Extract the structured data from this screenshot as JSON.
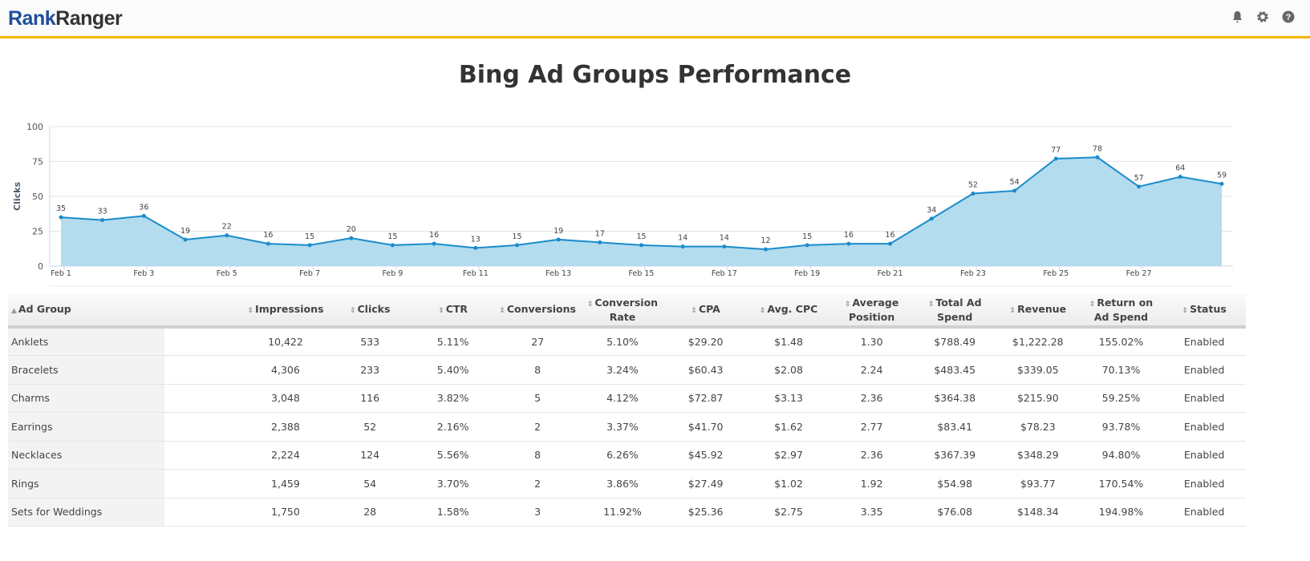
{
  "header": {
    "logo_part1": "Rank",
    "logo_part2": "Ranger",
    "icons": [
      "bell-icon",
      "gear-icon",
      "help-icon"
    ]
  },
  "title": "Bing Ad Groups Performance",
  "chart_data": {
    "type": "area",
    "title": "Bing Ad Groups Performance",
    "ylabel": "Clicks",
    "xlabel": "",
    "ylim": [
      0,
      100
    ],
    "yticks": [
      "0",
      "25",
      "50",
      "75",
      "100"
    ],
    "x": [
      "Feb 1",
      "Feb 2",
      "Feb 3",
      "Feb 4",
      "Feb 5",
      "Feb 6",
      "Feb 7",
      "Feb 8",
      "Feb 9",
      "Feb 10",
      "Feb 11",
      "Feb 12",
      "Feb 13",
      "Feb 14",
      "Feb 15",
      "Feb 16",
      "Feb 17",
      "Feb 18",
      "Feb 19",
      "Feb 20",
      "Feb 21",
      "Feb 22",
      "Feb 23",
      "Feb 24",
      "Feb 25",
      "Feb 26",
      "Feb 27",
      "Feb 28",
      "Feb 29"
    ],
    "xtick_labels": [
      "Feb 1",
      "Feb 3",
      "Feb 5",
      "Feb 7",
      "Feb 9",
      "Feb 11",
      "Feb 13",
      "Feb 15",
      "Feb 17",
      "Feb 19",
      "Feb 21",
      "Feb 23",
      "Feb 25",
      "Feb 27"
    ],
    "values": [
      35,
      33,
      36,
      19,
      22,
      16,
      15,
      20,
      15,
      16,
      13,
      15,
      19,
      17,
      15,
      14,
      14,
      12,
      15,
      16,
      16,
      34,
      52,
      54,
      77,
      78,
      57,
      64,
      59
    ],
    "line_color": "#1a8ccc",
    "fill_color": "#b3dcee",
    "grid": true
  },
  "table": {
    "headers": [
      "Ad Group",
      "Impressions",
      "Clicks",
      "CTR",
      "Conversions",
      "Conversion Rate",
      "CPA",
      "Avg. CPC",
      "Average Position",
      "Total Ad Spend",
      "Revenue",
      "Return on Ad Spend",
      "Status"
    ],
    "sort_icons": [
      "▲",
      "⇕"
    ],
    "rows": [
      [
        "Anklets",
        "10,422",
        "533",
        "5.11%",
        "27",
        "5.10%",
        "$29.20",
        "$1.48",
        "1.30",
        "$788.49",
        "$1,222.28",
        "155.02%",
        "Enabled"
      ],
      [
        "Bracelets",
        "4,306",
        "233",
        "5.40%",
        "8",
        "3.24%",
        "$60.43",
        "$2.08",
        "2.24",
        "$483.45",
        "$339.05",
        "70.13%",
        "Enabled"
      ],
      [
        "Charms",
        "3,048",
        "116",
        "3.82%",
        "5",
        "4.12%",
        "$72.87",
        "$3.13",
        "2.36",
        "$364.38",
        "$215.90",
        "59.25%",
        "Enabled"
      ],
      [
        "Earrings",
        "2,388",
        "52",
        "2.16%",
        "2",
        "3.37%",
        "$41.70",
        "$1.62",
        "2.77",
        "$83.41",
        "$78.23",
        "93.78%",
        "Enabled"
      ],
      [
        "Necklaces",
        "2,224",
        "124",
        "5.56%",
        "8",
        "6.26%",
        "$45.92",
        "$2.97",
        "2.36",
        "$367.39",
        "$348.29",
        "94.80%",
        "Enabled"
      ],
      [
        "Rings",
        "1,459",
        "54",
        "3.70%",
        "2",
        "3.86%",
        "$27.49",
        "$1.02",
        "1.92",
        "$54.98",
        "$93.77",
        "170.54%",
        "Enabled"
      ],
      [
        "Sets for Weddings",
        "1,750",
        "28",
        "1.58%",
        "3",
        "11.92%",
        "$25.36",
        "$2.75",
        "3.35",
        "$76.08",
        "$148.34",
        "194.98%",
        "Enabled"
      ]
    ]
  }
}
